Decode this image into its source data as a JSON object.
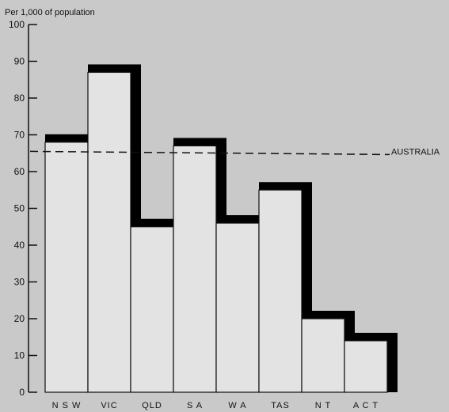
{
  "chart_data": {
    "type": "bar",
    "title": "",
    "ylabel": "Per 1,000 of population",
    "xlabel": "",
    "categories": [
      "N S W",
      "VIC",
      "QLD",
      "S A",
      "W A",
      "TAS",
      "N T",
      "A C T"
    ],
    "values": [
      68,
      87,
      45,
      67,
      46,
      55,
      20,
      14
    ],
    "ylim": [
      0,
      100
    ],
    "yticks": [
      "0",
      "10",
      "20",
      "30",
      "40",
      "50",
      "60",
      "70",
      "80",
      "90",
      "100"
    ],
    "reference_line": {
      "label": "AUSTRALIA",
      "value": 65.5
    },
    "grid": false,
    "colors": {
      "background": "#c9c9c9",
      "bar_fill": "#e3e3e3",
      "bar_shadow": "#000000",
      "ink": "#111111"
    }
  }
}
